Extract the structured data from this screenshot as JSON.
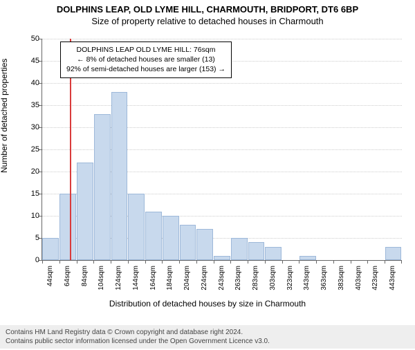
{
  "header": {
    "title1": "DOLPHINS LEAP, OLD LYME HILL, CHARMOUTH, BRIDPORT, DT6 6BP",
    "title2": "Size of property relative to detached houses in Charmouth"
  },
  "chart": {
    "type": "histogram",
    "ylabel": "Number of detached properties",
    "xlabel": "Distribution of detached houses by size in Charmouth",
    "ylim": [
      0,
      50
    ],
    "ytick_step": 5,
    "background_color": "#ffffff",
    "grid_color": "#cccccc",
    "bar_fill": "#c8d9ed",
    "bar_stroke": "#9db8d9",
    "axis_color": "#666666",
    "categories": [
      "44sqm",
      "64sqm",
      "84sqm",
      "104sqm",
      "124sqm",
      "144sqm",
      "164sqm",
      "184sqm",
      "204sqm",
      "224sqm",
      "243sqm",
      "263sqm",
      "283sqm",
      "303sqm",
      "323sqm",
      "343sqm",
      "363sqm",
      "383sqm",
      "403sqm",
      "423sqm",
      "443sqm"
    ],
    "values": [
      5,
      15,
      22,
      33,
      38,
      15,
      11,
      10,
      8,
      7,
      1,
      5,
      4,
      3,
      0,
      1,
      0,
      0,
      0,
      0,
      3
    ],
    "marker": {
      "index_position": 1.6,
      "color": "#d93b3b"
    },
    "annotation": {
      "line1": "DOLPHINS LEAP OLD LYME HILL: 76sqm",
      "line2": "← 8% of detached houses are smaller (13)",
      "line3": "92% of semi-detached houses are larger (153) →",
      "border_color": "#000000",
      "bg_color": "#ffffff"
    }
  },
  "footer": {
    "line1": "Contains HM Land Registry data © Crown copyright and database right 2024.",
    "line2": "Contains public sector information licensed under the Open Government Licence v3.0."
  }
}
